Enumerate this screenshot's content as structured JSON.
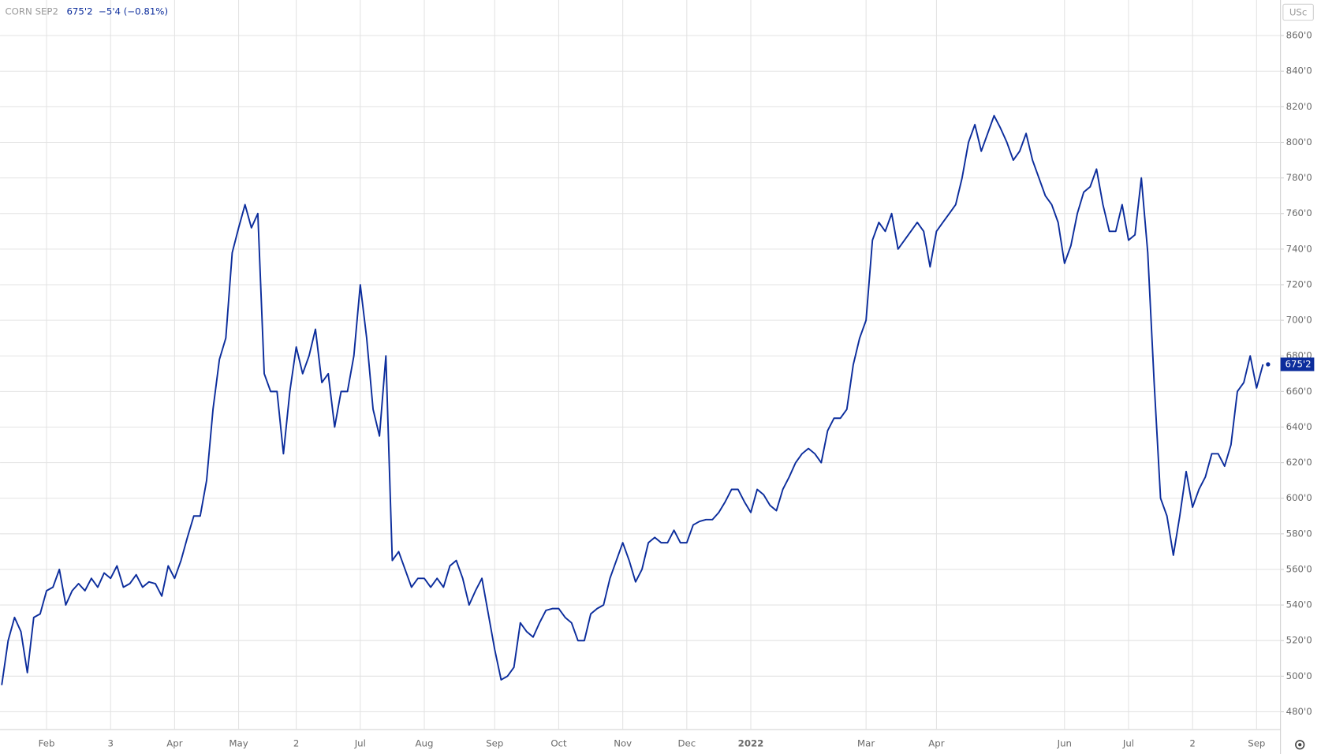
{
  "chart_data": {
    "type": "line",
    "symbol": "CORN SEP2",
    "last": "675'2",
    "change": "−5'4 (−0.81%)",
    "currency": "USc",
    "price_tag": {
      "value": 675.25,
      "label": "675'2"
    },
    "grid": true,
    "categories": [
      null,
      null,
      null,
      null,
      null,
      null,
      null,
      "Feb",
      null,
      null,
      null,
      null,
      null,
      null,
      null,
      null,
      null,
      "3",
      null,
      null,
      null,
      null,
      null,
      null,
      null,
      null,
      null,
      "Apr",
      null,
      null,
      null,
      null,
      null,
      null,
      null,
      null,
      null,
      "May",
      null,
      null,
      null,
      null,
      null,
      null,
      null,
      null,
      "2",
      null,
      null,
      null,
      null,
      null,
      null,
      null,
      null,
      null,
      "Jul",
      null,
      null,
      null,
      null,
      null,
      null,
      null,
      null,
      null,
      "Aug",
      null,
      null,
      null,
      null,
      null,
      null,
      null,
      null,
      null,
      null,
      "Sep",
      null,
      null,
      null,
      null,
      null,
      null,
      null,
      null,
      null,
      "Oct",
      null,
      null,
      null,
      null,
      null,
      null,
      null,
      null,
      null,
      "Nov",
      null,
      null,
      null,
      null,
      null,
      null,
      null,
      null,
      null,
      "Dec",
      null,
      null,
      null,
      null,
      null,
      null,
      null,
      null,
      null,
      "2022",
      null,
      null,
      null,
      null,
      null,
      null,
      null,
      null,
      null,
      null,
      null,
      null,
      null,
      null,
      null,
      null,
      null,
      "Mar",
      null,
      null,
      null,
      null,
      null,
      null,
      null,
      null,
      null,
      null,
      "Apr",
      null,
      null,
      null,
      null,
      null,
      null,
      null,
      null,
      null,
      null,
      null,
      null,
      null,
      null,
      null,
      null,
      null,
      null,
      null,
      "Jun",
      null,
      null,
      null,
      null,
      null,
      null,
      null,
      null,
      null,
      "Jul",
      null,
      null,
      null,
      null,
      null,
      null,
      null,
      null,
      null,
      "2",
      null,
      null,
      null,
      null,
      null,
      null,
      null,
      null,
      null,
      "Sep",
      null
    ],
    "series": [
      {
        "name": "CORN SEP2",
        "color": "#0c2d9c",
        "values": [
          495,
          520,
          533,
          525,
          502,
          533,
          535,
          548,
          550,
          560,
          540,
          548,
          552,
          548,
          555,
          550,
          558,
          555,
          562,
          550,
          552,
          557,
          550,
          553,
          552,
          545,
          562,
          555,
          565,
          578,
          590,
          590,
          610,
          650,
          678,
          690,
          738,
          752,
          765,
          752,
          760,
          670,
          660,
          660,
          625,
          660,
          685,
          670,
          680,
          695,
          665,
          670,
          640,
          660,
          660,
          680,
          720,
          690,
          650,
          635,
          680,
          565,
          570,
          560,
          550,
          555,
          555,
          550,
          555,
          550,
          562,
          565,
          555,
          540,
          548,
          555,
          535,
          515,
          498,
          500,
          505,
          530,
          525,
          522,
          530,
          537,
          538,
          538,
          533,
          530,
          520,
          520,
          535,
          538,
          540,
          555,
          565,
          575,
          565,
          553,
          560,
          575,
          578,
          575,
          575,
          582,
          575,
          575,
          585,
          587,
          588,
          588,
          592,
          598,
          605,
          605,
          598,
          592,
          605,
          602,
          596,
          593,
          605,
          612,
          620,
          625,
          628,
          625,
          620,
          638,
          645,
          645,
          650,
          675,
          690,
          700,
          745,
          755,
          750,
          760,
          740,
          745,
          750,
          755,
          750,
          730,
          750,
          755,
          760,
          765,
          780,
          800,
          810,
          795,
          805,
          815,
          808,
          800,
          790,
          795,
          805,
          790,
          780,
          770,
          765,
          755,
          732,
          742,
          760,
          772,
          775,
          785,
          765,
          750,
          750,
          765,
          745,
          748,
          780,
          738,
          665,
          600,
          590,
          568,
          590,
          615,
          595,
          605,
          612,
          625,
          625,
          618,
          630,
          660,
          665,
          680,
          662,
          675.25
        ]
      }
    ],
    "ylim": [
      470,
      880
    ],
    "yticks": [
      {
        "value": 480,
        "label": "480'0"
      },
      {
        "value": 500,
        "label": "500'0"
      },
      {
        "value": 520,
        "label": "520'0"
      },
      {
        "value": 540,
        "label": "540'0"
      },
      {
        "value": 560,
        "label": "560'0"
      },
      {
        "value": 580,
        "label": "580'0"
      },
      {
        "value": 600,
        "label": "600'0"
      },
      {
        "value": 620,
        "label": "620'0"
      },
      {
        "value": 640,
        "label": "640'0"
      },
      {
        "value": 660,
        "label": "660'0"
      },
      {
        "value": 680,
        "label": "680'0"
      },
      {
        "value": 700,
        "label": "700'0"
      },
      {
        "value": 720,
        "label": "720'0"
      },
      {
        "value": 740,
        "label": "740'0"
      },
      {
        "value": 760,
        "label": "760'0"
      },
      {
        "value": 780,
        "label": "780'0"
      },
      {
        "value": 800,
        "label": "800'0"
      },
      {
        "value": 820,
        "label": "820'0"
      },
      {
        "value": 840,
        "label": "840'0"
      },
      {
        "value": 860,
        "label": "860'0"
      }
    ]
  }
}
